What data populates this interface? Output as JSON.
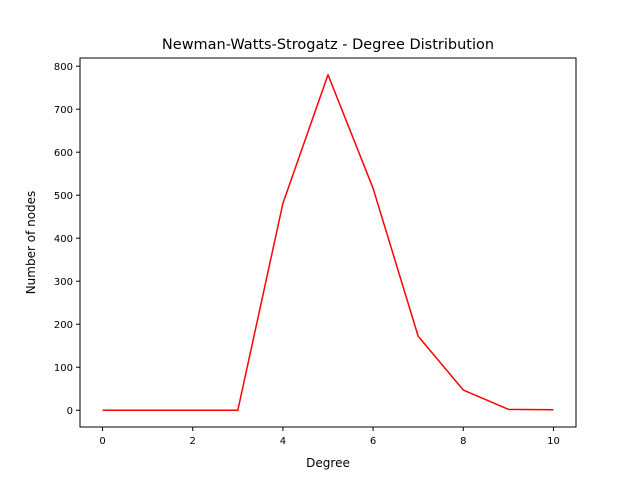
{
  "chart_data": {
    "type": "line",
    "title": "Newman-Watts-Strogatz - Degree Distribution",
    "xlabel": "Degree",
    "ylabel": "Number of nodes",
    "xlim": [
      -0.5,
      10.5
    ],
    "ylim": [
      -39,
      819
    ],
    "xticks": [
      0,
      2,
      4,
      6,
      8,
      10
    ],
    "yticks": [
      0,
      100,
      200,
      300,
      400,
      500,
      600,
      700,
      800
    ],
    "grid": false,
    "legend": "none",
    "series": [
      {
        "color": "#ff0000",
        "x": [
          0,
          1,
          2,
          3,
          4,
          5,
          6,
          7,
          8,
          9,
          10
        ],
        "y": [
          0,
          0,
          0,
          0,
          481,
          780,
          516,
          172,
          47,
          2,
          1
        ]
      }
    ]
  }
}
